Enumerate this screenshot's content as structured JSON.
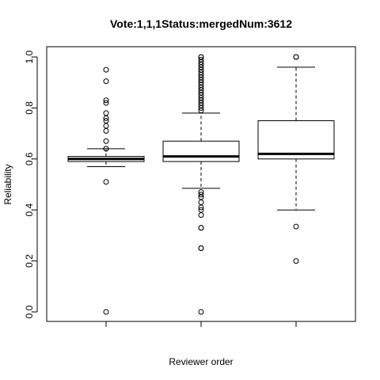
{
  "chart_data": {
    "type": "boxplot",
    "title": "Vote:1,1,1Status:mergedNum:3612",
    "xlabel": "Reviewer order",
    "ylabel": "Reliability",
    "ylim": [
      0,
      1
    ],
    "yticks": [
      "0.0",
      "0.2",
      "0.4",
      "0.6",
      "0.8",
      "1.0"
    ],
    "grid": false,
    "legend": "none",
    "boxes": [
      {
        "whisker_low": 0.57,
        "q1": 0.59,
        "median": 0.6,
        "q3": 0.61,
        "whisker_high": 0.64,
        "outliers": [
          0.0,
          0.51,
          0.64,
          0.64,
          0.67,
          0.71,
          0.73,
          0.75,
          0.76,
          0.78,
          0.82,
          0.83,
          0.905,
          0.95
        ]
      },
      {
        "whisker_low": 0.485,
        "q1": 0.59,
        "median": 0.61,
        "q3": 0.67,
        "whisker_high": 0.78,
        "outliers": [
          0.0,
          0.25,
          0.25,
          0.33,
          0.33,
          0.38,
          0.4,
          0.41,
          0.43,
          0.45,
          0.46,
          0.47,
          0.79,
          0.8,
          0.81,
          0.82,
          0.83,
          0.84,
          0.85,
          0.86,
          0.87,
          0.88,
          0.89,
          0.9,
          0.91,
          0.92,
          0.93,
          0.94,
          0.95,
          0.96,
          0.97,
          0.98,
          0.99,
          1.0,
          1.0
        ]
      },
      {
        "whisker_low": 0.4,
        "q1": 0.6,
        "median": 0.62,
        "q3": 0.75,
        "whisker_high": 0.96,
        "outliers": [
          0.2,
          0.335,
          1.0,
          1.0
        ]
      }
    ]
  }
}
